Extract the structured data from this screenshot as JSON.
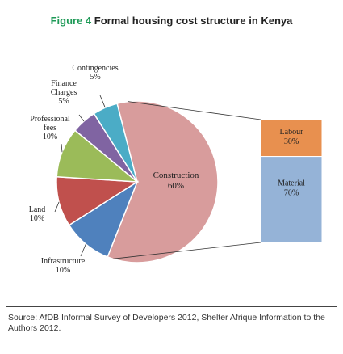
{
  "title": {
    "figure_label": "Figure 4",
    "text": "Formal housing cost structure in Kenya"
  },
  "chart_data": [
    {
      "type": "pie",
      "slices": [
        {
          "name": "Construction",
          "percent_label": "60%",
          "value": 60,
          "color": "#d89c9c"
        },
        {
          "name": "Infrastructure",
          "percent_label": "10%",
          "value": 10,
          "color": "#4f81bd"
        },
        {
          "name": "Land",
          "percent_label": "10%",
          "value": 10,
          "color": "#c0504d"
        },
        {
          "name": "Professional fees",
          "lines": [
            "Professional",
            "fees"
          ],
          "percent_label": "10%",
          "value": 10,
          "color": "#9bbb59"
        },
        {
          "name": "Finance Charges",
          "lines": [
            "Finance",
            "Charges"
          ],
          "percent_label": "5%",
          "value": 5,
          "color": "#8064a2"
        },
        {
          "name": "Contingencies",
          "lines": [
            "Contingencies"
          ],
          "percent_label": "5%",
          "value": 5,
          "color": "#4bacc6"
        }
      ]
    },
    {
      "type": "bar",
      "stacked": true,
      "breakdown_of": "Construction",
      "segments": [
        {
          "name": "Labour",
          "percent_label": "30%",
          "value": 30,
          "color": "#e8904f"
        },
        {
          "name": "Material",
          "percent_label": "70%",
          "value": 70,
          "color": "#95b3d7"
        }
      ]
    }
  ],
  "source": "Source: AfDB Informal Survey of Developers 2012, Shelter Afrique Information to the Authors 2012."
}
